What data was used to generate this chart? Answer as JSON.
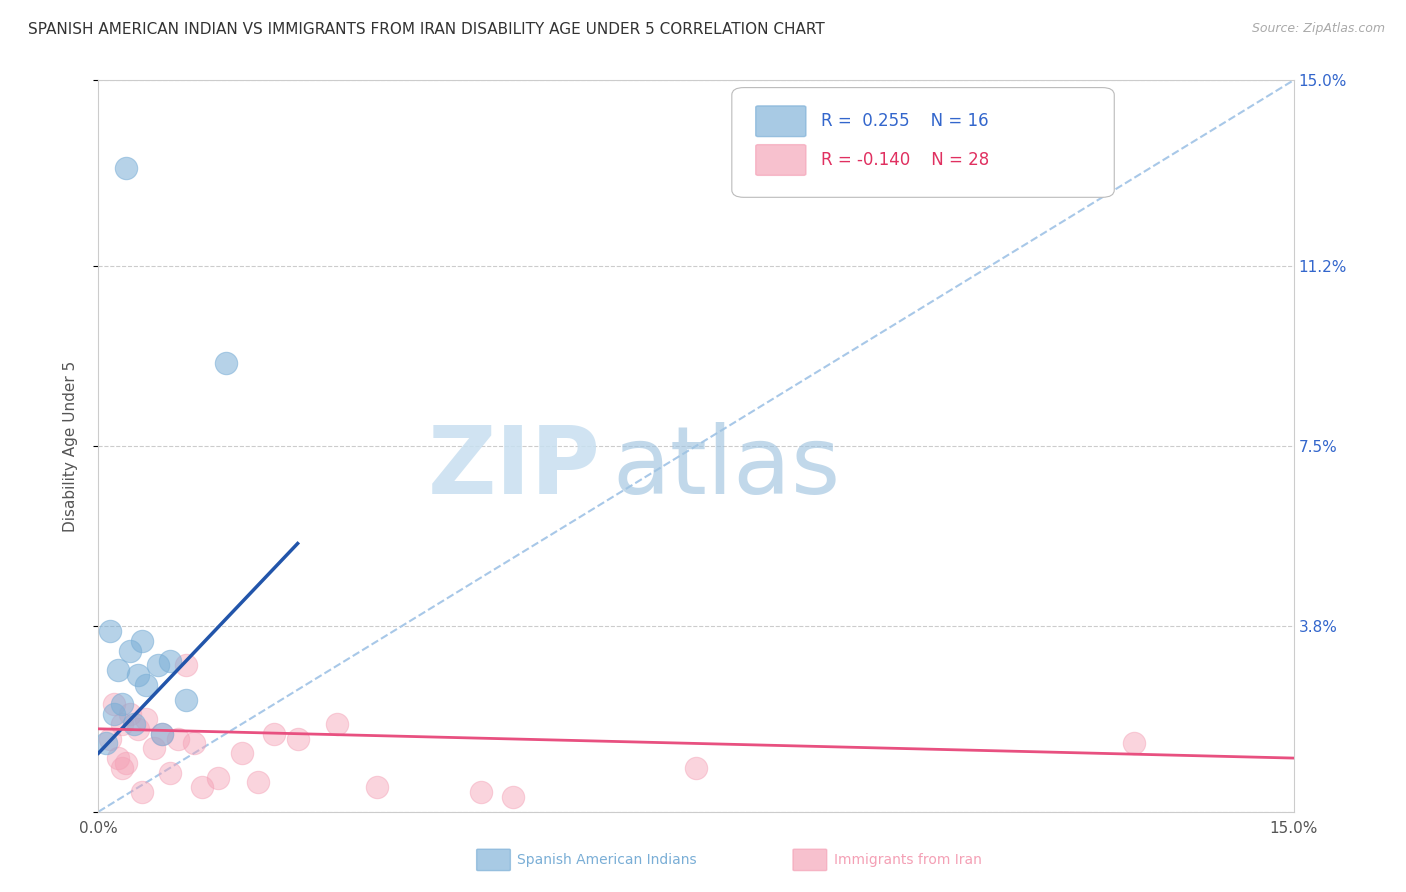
{
  "title": "SPANISH AMERICAN INDIAN VS IMMIGRANTS FROM IRAN DISABILITY AGE UNDER 5 CORRELATION CHART",
  "source": "Source: ZipAtlas.com",
  "ylabel": "Disability Age Under 5",
  "xlim": [
    0.0,
    15.0
  ],
  "ylim": [
    0.0,
    15.0
  ],
  "yticks": [
    0.0,
    3.8,
    7.5,
    11.2,
    15.0
  ],
  "ytick_labels": [
    "",
    "3.8%",
    "7.5%",
    "11.2%",
    "15.0%"
  ],
  "xticks": [
    0.0,
    3.75,
    7.5,
    11.25,
    15.0
  ],
  "xtick_labels": [
    "0.0%",
    "",
    "",
    "",
    "15.0%"
  ],
  "grid_color": "#cccccc",
  "bg_color": "#ffffff",
  "watermark_zip": "ZIP",
  "watermark_atlas": "atlas",
  "color_blue": "#7aaed6",
  "color_pink": "#f4a0b5",
  "color_diagonal": "#a8c8e8",
  "color_blue_line": "#2255aa",
  "color_pink_line": "#e85080",
  "color_tick_right": "#3366CC",
  "blue_scatter_x": [
    0.35,
    1.6,
    0.55,
    0.9,
    0.4,
    0.25,
    0.6,
    1.1,
    0.2,
    0.15,
    0.5,
    0.75,
    0.3,
    0.45,
    0.8,
    0.1
  ],
  "blue_scatter_y": [
    13.2,
    9.2,
    3.5,
    3.1,
    3.3,
    2.9,
    2.6,
    2.3,
    2.0,
    3.7,
    2.8,
    3.0,
    2.2,
    1.8,
    1.6,
    1.4
  ],
  "pink_scatter_x": [
    0.3,
    0.2,
    0.15,
    0.4,
    0.5,
    0.6,
    0.8,
    1.0,
    1.2,
    0.7,
    0.3,
    0.9,
    1.5,
    2.0,
    2.5,
    3.0,
    1.8,
    2.2,
    0.35,
    0.25,
    1.1,
    1.3,
    3.5,
    0.55,
    4.8,
    5.2,
    7.5,
    13.0
  ],
  "pink_scatter_y": [
    1.8,
    2.2,
    1.5,
    2.0,
    1.7,
    1.9,
    1.6,
    1.5,
    1.4,
    1.3,
    0.9,
    0.8,
    0.7,
    0.6,
    1.5,
    1.8,
    1.2,
    1.6,
    1.0,
    1.1,
    3.0,
    0.5,
    0.5,
    0.4,
    0.4,
    0.3,
    0.9,
    1.4
  ],
  "blue_line_x": [
    0.0,
    2.5
  ],
  "blue_line_y": [
    1.2,
    5.5
  ],
  "pink_line_x": [
    0.0,
    15.0
  ],
  "pink_line_y": [
    1.7,
    1.1
  ],
  "legend_r1": "R =  0.255",
  "legend_n1": "N = 16",
  "legend_r2": "R = -0.140",
  "legend_n2": "N = 28",
  "legend_fontsize": 13,
  "title_fontsize": 11,
  "axis_label_fontsize": 11,
  "tick_fontsize": 11
}
